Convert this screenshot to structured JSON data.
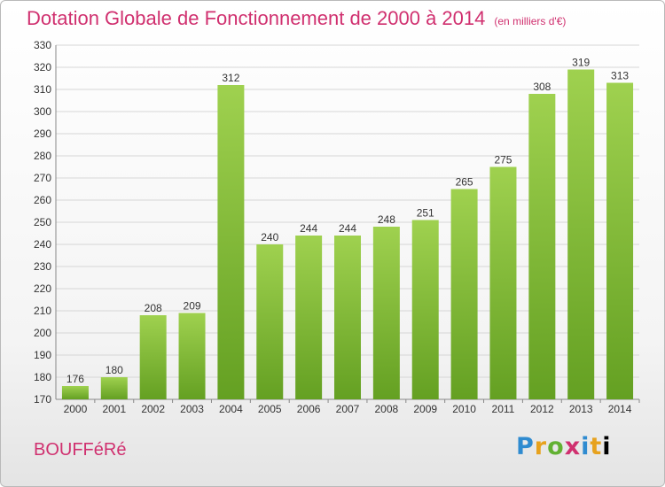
{
  "header": {
    "title": "Dotation Globale de Fonctionnement de 2000 à 2014",
    "unit": "(en milliers d'€)"
  },
  "footer": {
    "commune": "BOUFFéRé",
    "logo_letters": [
      "P",
      "r",
      "o",
      "x",
      "i",
      "t",
      "i"
    ]
  },
  "colors": {
    "title": "#d0306f",
    "bar_top": "#9fd14f",
    "bar_bottom": "#64a022"
  },
  "chart_data": {
    "type": "bar",
    "title": "Dotation Globale de Fonctionnement de 2000 à 2014",
    "subtitle": "(en milliers d'€)",
    "xlabel": "",
    "ylabel": "",
    "categories": [
      "2000",
      "2001",
      "2002",
      "2003",
      "2004",
      "2005",
      "2006",
      "2007",
      "2008",
      "2009",
      "2010",
      "2011",
      "2012",
      "2013",
      "2014"
    ],
    "values": [
      176,
      180,
      208,
      209,
      312,
      240,
      244,
      244,
      248,
      251,
      265,
      275,
      308,
      319,
      313
    ],
    "ylim": [
      170,
      330
    ],
    "yticks": [
      170,
      180,
      190,
      200,
      210,
      220,
      230,
      240,
      250,
      260,
      270,
      280,
      290,
      300,
      310,
      320,
      330
    ],
    "grid": true,
    "legend": "none"
  }
}
